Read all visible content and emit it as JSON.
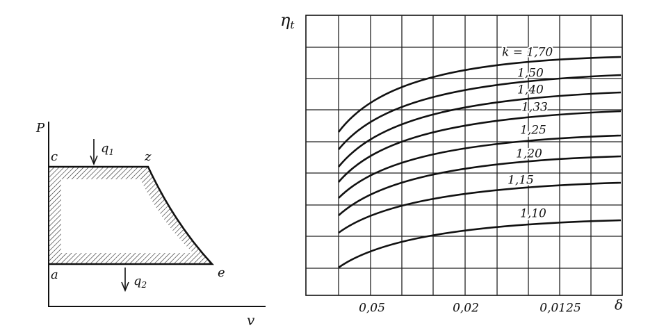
{
  "pv_diagram": {
    "axis_p": "P",
    "axis_v": "v",
    "point_c": "c",
    "point_z": "z",
    "point_a": "a",
    "point_e": "e",
    "heat_in": {
      "symbol": "q",
      "subscript": "1"
    },
    "heat_out": {
      "symbol": "q",
      "subscript": "2"
    }
  },
  "efficiency_chart": {
    "y_label": {
      "symbol": "η",
      "subscript": "t"
    },
    "x_label": "δ",
    "x_tick_labels": [
      "0,05",
      "0,02",
      "0,0125"
    ],
    "curve_labels": [
      "k = 1,70",
      "1,50",
      "1,40",
      "1,33",
      "1,25",
      "1,20",
      "1,15",
      "1,10"
    ]
  }
}
